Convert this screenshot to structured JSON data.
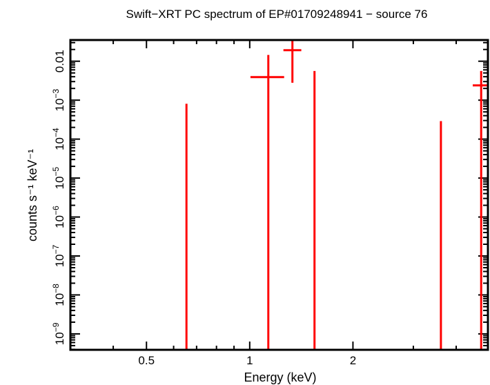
{
  "chart_data": {
    "type": "scatter",
    "title": "Swift−XRT PC spectrum of EP#01709248941 − source 76",
    "xlabel": "Energy (keV)",
    "ylabel": "counts s⁻¹ keV⁻¹",
    "xscale": "log",
    "yscale": "log",
    "xlim": [
      0.3,
      4.95
    ],
    "ylim": [
      3.9e-10,
      0.035
    ],
    "x_ticks": [
      {
        "v": 0.5,
        "label": "0.5"
      },
      {
        "v": 1,
        "label": "1"
      },
      {
        "v": 2,
        "label": "2"
      }
    ],
    "y_ticks": [
      {
        "v": 0.01,
        "base": "0.01",
        "exp": ""
      },
      {
        "v": 0.001,
        "base": "10",
        "exp": "−3"
      },
      {
        "v": 0.0001,
        "base": "10",
        "exp": "−4"
      },
      {
        "v": 1e-05,
        "base": "10",
        "exp": "−5"
      },
      {
        "v": 1e-06,
        "base": "10",
        "exp": "−6"
      },
      {
        "v": 1e-07,
        "base": "10",
        "exp": "−7"
      },
      {
        "v": 1e-08,
        "base": "10",
        "exp": "−8"
      },
      {
        "v": 1e-09,
        "base": "10",
        "exp": "−9"
      }
    ],
    "grid": false,
    "series": [
      {
        "color": "#ff0000",
        "points": [
          {
            "x": 0.654,
            "x_lo": 0.654,
            "x_hi": 0.654,
            "y": null,
            "y_lo": null,
            "y_hi": 0.00081
          },
          {
            "x": 1.133,
            "x_lo": 1.005,
            "x_hi": 1.26,
            "y": 0.0039,
            "y_lo": null,
            "y_hi": 0.0145
          },
          {
            "x": 1.332,
            "x_lo": 1.254,
            "x_hi": 1.414,
            "y": 0.0192,
            "y_lo": 0.0028,
            "y_hi": 0.035
          },
          {
            "x": 1.545,
            "x_lo": 1.545,
            "x_hi": 1.545,
            "y": null,
            "y_lo": null,
            "y_hi": 0.0056
          },
          {
            "x": 3.61,
            "x_lo": 3.61,
            "x_hi": 3.61,
            "y": null,
            "y_lo": null,
            "y_hi": 0.00029
          },
          {
            "x": 4.73,
            "x_lo": 4.47,
            "x_hi": 4.95,
            "y": 0.0024,
            "y_lo": null,
            "y_hi": 0.0056
          }
        ]
      }
    ]
  }
}
